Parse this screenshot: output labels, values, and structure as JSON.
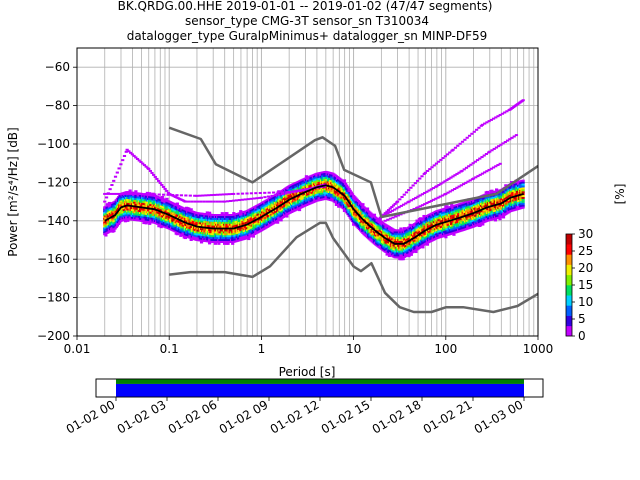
{
  "chart_data": {
    "type": "heatmap",
    "title_lines": [
      "BK.QRDG.00.HHE   2019-01-01 -- 2019-01-02  (47/47 segments)",
      "sensor_type CMG-3T sensor_sn T310034",
      "datalogger_type GuralpMinimus+ datalogger_sn MINP-DF59"
    ],
    "xlabel": "Period [s]",
    "ylabel": "Power [m²/s⁴/Hz] [dB]",
    "x_scale": "log",
    "xlim": [
      0.01,
      1000
    ],
    "ylim": [
      -200,
      -50
    ],
    "grid": true,
    "x_ticks": [
      {
        "value": 0.01,
        "label": "0.01"
      },
      {
        "value": 0.1,
        "label": "0.1"
      },
      {
        "value": 1,
        "label": "1"
      },
      {
        "value": 10,
        "label": "10"
      },
      {
        "value": 100,
        "label": "100"
      },
      {
        "value": 1000,
        "label": "1000"
      }
    ],
    "y_ticks": [
      {
        "value": -60,
        "label": "−60"
      },
      {
        "value": -80,
        "label": "−80"
      },
      {
        "value": -100,
        "label": "−100"
      },
      {
        "value": -120,
        "label": "−120"
      },
      {
        "value": -140,
        "label": "−140"
      },
      {
        "value": -160,
        "label": "−160"
      },
      {
        "value": -180,
        "label": "−180"
      },
      {
        "value": -200,
        "label": "−200"
      }
    ],
    "noise_models": {
      "color": "#666666",
      "nhnm": [
        [
          0.1,
          -91.5
        ],
        [
          0.22,
          -97.4
        ],
        [
          0.32,
          -110.5
        ],
        [
          0.8,
          -120
        ],
        [
          3.8,
          -98
        ],
        [
          4.6,
          -96.5
        ],
        [
          6.3,
          -101
        ],
        [
          7.9,
          -113.5
        ],
        [
          15.4,
          -120
        ],
        [
          20,
          -138
        ],
        [
          354,
          -126
        ],
        [
          1000,
          -111.5
        ]
      ],
      "nlnm": [
        [
          0.1,
          -168
        ],
        [
          0.17,
          -166.7
        ],
        [
          0.4,
          -166.7
        ],
        [
          0.8,
          -169.2
        ],
        [
          1.24,
          -163.7
        ],
        [
          2.4,
          -148.6
        ],
        [
          4.3,
          -141.1
        ],
        [
          5,
          -141.1
        ],
        [
          6,
          -149
        ],
        [
          10,
          -163.8
        ],
        [
          12,
          -166.2
        ],
        [
          15.6,
          -162.1
        ],
        [
          21.9,
          -177.5
        ],
        [
          31.6,
          -185
        ],
        [
          45,
          -187.5
        ],
        [
          70,
          -187.5
        ],
        [
          101,
          -185
        ],
        [
          154,
          -185
        ],
        [
          328,
          -187.5
        ],
        [
          600,
          -184.4
        ],
        [
          1000,
          -178
        ]
      ]
    },
    "mean_line": {
      "color": "#000000",
      "points": [
        [
          0.02,
          -140
        ],
        [
          0.026,
          -137
        ],
        [
          0.03,
          -133
        ],
        [
          0.035,
          -132
        ],
        [
          0.05,
          -133
        ],
        [
          0.07,
          -134
        ],
        [
          0.1,
          -137
        ],
        [
          0.15,
          -141
        ],
        [
          0.2,
          -143
        ],
        [
          0.3,
          -144
        ],
        [
          0.5,
          -144
        ],
        [
          0.7,
          -142
        ],
        [
          1,
          -138
        ],
        [
          1.5,
          -133
        ],
        [
          2,
          -129
        ],
        [
          3,
          -125
        ],
        [
          4,
          -122.5
        ],
        [
          5,
          -121.5
        ],
        [
          6,
          -122.5
        ],
        [
          8,
          -127
        ],
        [
          10,
          -134
        ],
        [
          13,
          -140
        ],
        [
          17,
          -145
        ],
        [
          22,
          -149
        ],
        [
          28,
          -152
        ],
        [
          35,
          -152
        ],
        [
          45,
          -149
        ],
        [
          60,
          -145
        ],
        [
          80,
          -142
        ],
        [
          110,
          -140
        ],
        [
          150,
          -138
        ],
        [
          200,
          -136
        ],
        [
          280,
          -133
        ],
        [
          400,
          -131
        ],
        [
          500,
          -128
        ],
        [
          700,
          -126
        ]
      ]
    },
    "colorbar": {
      "label": "[%]",
      "range": [
        0,
        30
      ],
      "ticks": [
        0,
        5,
        10,
        15,
        20,
        25,
        30
      ],
      "tick_labels": [
        "0",
        "5",
        "10",
        "15",
        "20",
        "25",
        "30"
      ],
      "colormap": [
        "#ffffff",
        "#c000ff",
        "#3000e0",
        "#0060ff",
        "#00d0ff",
        "#00e060",
        "#80f000",
        "#f0f000",
        "#ff9000",
        "#ff0000",
        "#c00000"
      ]
    },
    "timeline": {
      "tick_labels": [
        "01-02 00",
        "01-02 03",
        "01-02 06",
        "01-02 09",
        "01-02 12",
        "01-02 15",
        "01-02 18",
        "01-02 21",
        "01-03 00"
      ],
      "bands": [
        {
          "name": "data",
          "color": "#008000"
        },
        {
          "name": "used",
          "color": "#0000ff"
        }
      ]
    }
  }
}
